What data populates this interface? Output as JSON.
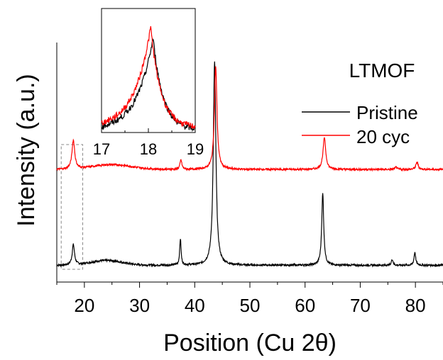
{
  "chart_data": {
    "type": "line",
    "title": "LTMOF",
    "xlabel": "Position (Cu 2θ)",
    "ylabel": "Intensity (a.u.)",
    "xlim": [
      15,
      85
    ],
    "x_ticks": [
      20,
      30,
      40,
      50,
      60,
      70,
      80
    ],
    "y_ticks": "none",
    "grid": false,
    "legend_position": "right, below title",
    "series": [
      {
        "name": "Pristine",
        "color": "#000000",
        "baseline": 0.07,
        "noise": 0.004,
        "hump": {
          "center": 24,
          "width": 4,
          "height": 0.02
        },
        "peaks": [
          {
            "x": 18.0,
            "height": 0.085,
            "width": 0.25
          },
          {
            "x": 37.4,
            "height": 0.11,
            "width": 0.15
          },
          {
            "x": 43.6,
            "height": 0.85,
            "width": 0.28
          },
          {
            "x": 63.2,
            "height": 0.3,
            "width": 0.22
          },
          {
            "x": 75.8,
            "height": 0.025,
            "width": 0.18
          },
          {
            "x": 79.9,
            "height": 0.055,
            "width": 0.18
          }
        ]
      },
      {
        "name": "20 cyc",
        "color": "#ff0000",
        "baseline": 0.47,
        "noise": 0.004,
        "hump": {
          "center": 25,
          "width": 5,
          "height": 0.02
        },
        "peaks": [
          {
            "x": 18.0,
            "height": 0.12,
            "width": 0.3
          },
          {
            "x": 37.5,
            "height": 0.04,
            "width": 0.2
          },
          {
            "x": 43.8,
            "height": 0.43,
            "width": 0.28
          },
          {
            "x": 63.5,
            "height": 0.13,
            "width": 0.3
          },
          {
            "x": 76.5,
            "height": 0.01,
            "width": 0.2
          },
          {
            "x": 80.3,
            "height": 0.03,
            "width": 0.25
          }
        ]
      }
    ],
    "inset": {
      "xlim": [
        17,
        19
      ],
      "x_ticks": [
        17,
        18,
        19
      ],
      "highlight_x_range": [
        15.8,
        19.7
      ],
      "series": [
        {
          "name": "Pristine",
          "color": "#000000",
          "center": 18.1,
          "peak": 0.76,
          "base": 0.02,
          "noise": 0.025
        },
        {
          "name": "20 cyc",
          "color": "#ff0000",
          "center": 18.05,
          "peak": 0.85,
          "base": 0.04,
          "noise": 0.025
        }
      ]
    }
  }
}
